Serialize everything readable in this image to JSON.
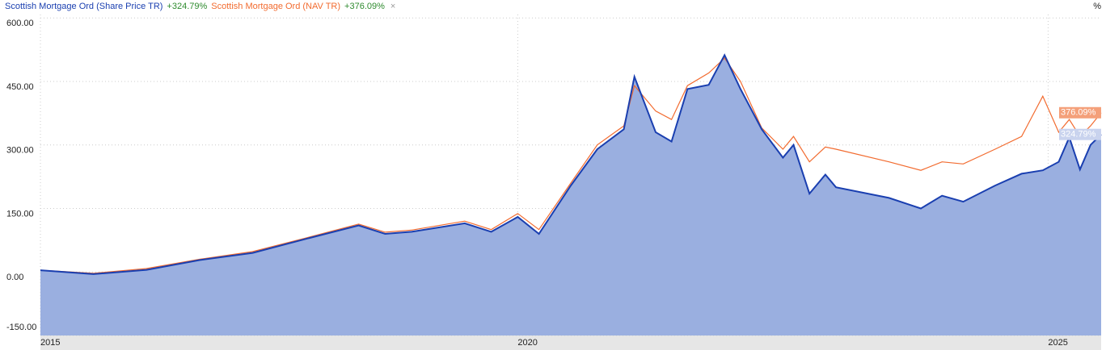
{
  "chart_data": {
    "type": "line",
    "unit": "%",
    "x": [
      2015.5,
      2016.0,
      2016.5,
      2017.0,
      2017.5,
      2018.0,
      2018.5,
      2018.75,
      2019.0,
      2019.5,
      2019.75,
      2020.0,
      2020.2,
      2020.5,
      2020.75,
      2021.0,
      2021.1,
      2021.3,
      2021.45,
      2021.6,
      2021.8,
      2021.95,
      2022.1,
      2022.3,
      2022.5,
      2022.6,
      2022.75,
      2022.9,
      2023.0,
      2023.5,
      2023.8,
      2024.0,
      2024.2,
      2024.5,
      2024.75,
      2024.95,
      2025.1,
      2025.2,
      2025.3,
      2025.4,
      2025.5
    ],
    "series": [
      {
        "name": "Scottish Mortgage Ord (Share Price TR)",
        "change_label": "+324.79%",
        "end_label": "324.79%",
        "color": "#1a3fb0",
        "area_color": "#9aafe0",
        "values": [
          4,
          -5,
          5,
          28,
          45,
          78,
          110,
          90,
          95,
          115,
          95,
          130,
          90,
          204,
          290,
          337,
          461,
          330,
          308,
          432,
          442,
          512,
          432,
          337,
          270,
          300,
          185,
          230,
          200,
          175,
          150,
          180,
          166,
          204,
          232,
          240,
          260,
          318,
          242,
          300,
          324.79
        ]
      },
      {
        "name": "Scottish Mortgage Ord (NAV TR)",
        "change_label": "+376.09%",
        "end_label": "376.09%",
        "color": "#f26b2f",
        "values": [
          4,
          -3,
          8,
          30,
          48,
          80,
          113,
          94,
          99,
          120,
          100,
          138,
          100,
          210,
          300,
          345,
          440,
          380,
          360,
          440,
          470,
          505,
          450,
          340,
          290,
          320,
          260,
          295,
          290,
          260,
          240,
          260,
          255,
          290,
          320,
          415,
          330,
          360,
          320,
          345,
          376.09
        ]
      }
    ],
    "xlim": [
      2015.5,
      2025.5
    ],
    "xticks": [
      {
        "value": 2015.5,
        "label": "2015"
      },
      2020,
      2025
    ],
    "ylim": [
      -150,
      608
    ],
    "yticks": [
      {
        "value": -150,
        "label": "-150.00"
      },
      {
        "value": 0,
        "label": "0.00"
      },
      {
        "value": 150,
        "label": "150.00"
      },
      {
        "value": 300,
        "label": "300.00"
      },
      {
        "value": 450,
        "label": "450.00"
      },
      {
        "value": 600,
        "label": "600.00"
      }
    ],
    "grid": true
  }
}
